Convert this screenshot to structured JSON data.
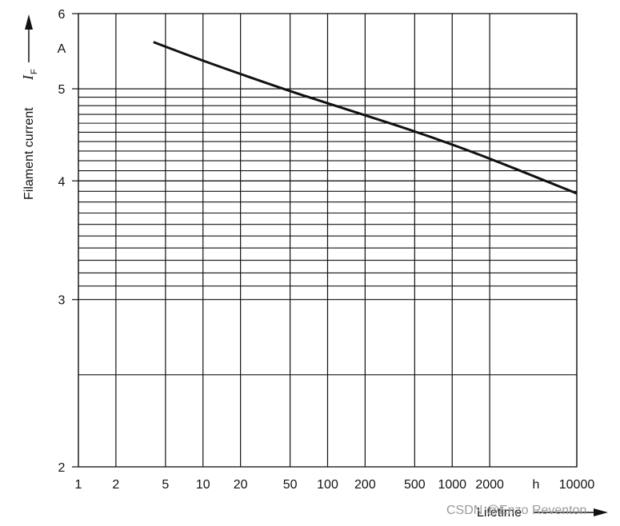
{
  "chart_data": {
    "type": "line",
    "xscale": "log",
    "yscale": "log",
    "xlim": [
      1,
      10000
    ],
    "ylim": [
      2,
      6
    ],
    "grid": true,
    "x_ticks": [
      1,
      2,
      5,
      10,
      20,
      50,
      100,
      200,
      500,
      1000,
      2000,
      10000
    ],
    "x_tick_labels": [
      "1",
      "2",
      "5",
      "10",
      "20",
      "50",
      "100",
      "200",
      "500",
      "1000",
      "2000",
      "10000"
    ],
    "x_unit": "h",
    "xlabel": "Lifetime",
    "y_ticks": [
      2,
      3,
      4,
      5,
      6
    ],
    "y_tick_labels": [
      "2",
      "3",
      "4",
      "5",
      "6"
    ],
    "y_unit": "A",
    "ylabel": "Filament current",
    "ylabel_symbol": "I",
    "ylabel_subscript": "F",
    "series": [
      {
        "x": [
          4,
          10,
          50,
          100,
          1000,
          10000
        ],
        "y": [
          5.6,
          5.35,
          4.97,
          4.83,
          4.38,
          3.88
        ]
      }
    ]
  },
  "watermark": "CSDN @Enzo Reventon"
}
